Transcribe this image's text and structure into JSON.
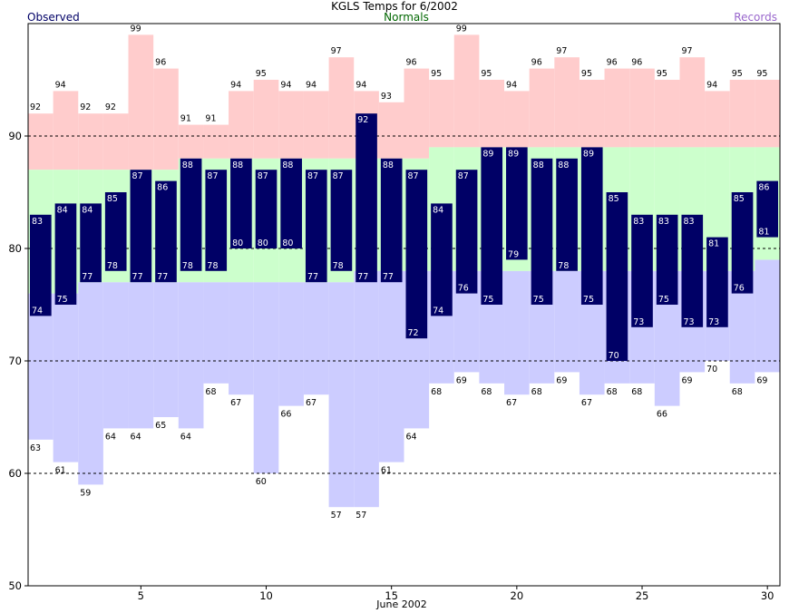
{
  "chart_data": {
    "type": "bar",
    "title": "KGLS Temps for 6/2002",
    "xlabel": "June 2002",
    "ylabel": "",
    "ylim": [
      50,
      100
    ],
    "xlim": [
      0.5,
      30.5
    ],
    "x_ticks": [
      5,
      10,
      15,
      20,
      25,
      30
    ],
    "y_ticks": [
      50,
      60,
      70,
      80,
      90
    ],
    "dashed_gridlines": [
      60,
      70,
      80,
      90
    ],
    "legend_labels": {
      "observed": "Observed",
      "normals": "Normals",
      "records": "Records"
    },
    "days": [
      1,
      2,
      3,
      4,
      5,
      6,
      7,
      8,
      9,
      10,
      11,
      12,
      13,
      14,
      15,
      16,
      17,
      18,
      19,
      20,
      21,
      22,
      23,
      24,
      25,
      26,
      27,
      28,
      29,
      30
    ],
    "series": [
      {
        "name": "Observed",
        "key": "obs_high",
        "values": [
          83,
          84,
          84,
          85,
          87,
          86,
          88,
          87,
          88,
          87,
          88,
          87,
          87,
          92,
          88,
          87,
          84,
          87,
          89,
          89,
          88,
          88,
          89,
          85,
          83,
          83,
          83,
          81,
          85,
          86
        ]
      },
      {
        "name": "Observed",
        "key": "obs_low",
        "values": [
          74,
          75,
          77,
          78,
          77,
          77,
          78,
          78,
          80,
          80,
          80,
          77,
          78,
          77,
          77,
          72,
          74,
          76,
          75,
          79,
          75,
          78,
          75,
          70,
          73,
          75,
          73,
          73,
          76,
          81
        ]
      },
      {
        "name": "Normals",
        "key": "normal_high",
        "values": [
          87,
          87,
          87,
          87,
          87,
          87,
          88,
          88,
          88,
          88,
          88,
          88,
          88,
          88,
          88,
          88,
          89,
          89,
          89,
          89,
          89,
          89,
          89,
          89,
          89,
          89,
          89,
          89,
          89,
          89
        ]
      },
      {
        "name": "Normals",
        "key": "normal_low",
        "values": [
          76,
          76,
          77,
          77,
          77,
          77,
          77,
          77,
          77,
          77,
          77,
          77,
          77,
          78,
          78,
          78,
          78,
          78,
          78,
          78,
          78,
          78,
          78,
          78,
          78,
          78,
          78,
          78,
          78,
          79
        ]
      },
      {
        "name": "Records",
        "key": "record_high",
        "values": [
          92,
          94,
          92,
          92,
          99,
          96,
          91,
          91,
          94,
          95,
          94,
          94,
          97,
          94,
          93,
          96,
          95,
          99,
          95,
          94,
          96,
          97,
          95,
          96,
          96,
          95,
          97,
          94,
          95,
          95
        ]
      },
      {
        "name": "Records",
        "key": "record_low",
        "values": [
          63,
          61,
          59,
          64,
          64,
          65,
          64,
          68,
          67,
          60,
          66,
          67,
          57,
          57,
          61,
          64,
          68,
          69,
          68,
          67,
          68,
          69,
          67,
          68,
          68,
          66,
          69,
          70,
          68,
          69
        ]
      }
    ]
  },
  "colors": {
    "record_fill": "#ffcccc",
    "normal_fill": "#ccffcc",
    "record_low_fill": "#ccccff",
    "observed_fill": "#000066",
    "observed_label": "#000066",
    "normals_label": "#006600",
    "records_label": "#9966cc"
  }
}
